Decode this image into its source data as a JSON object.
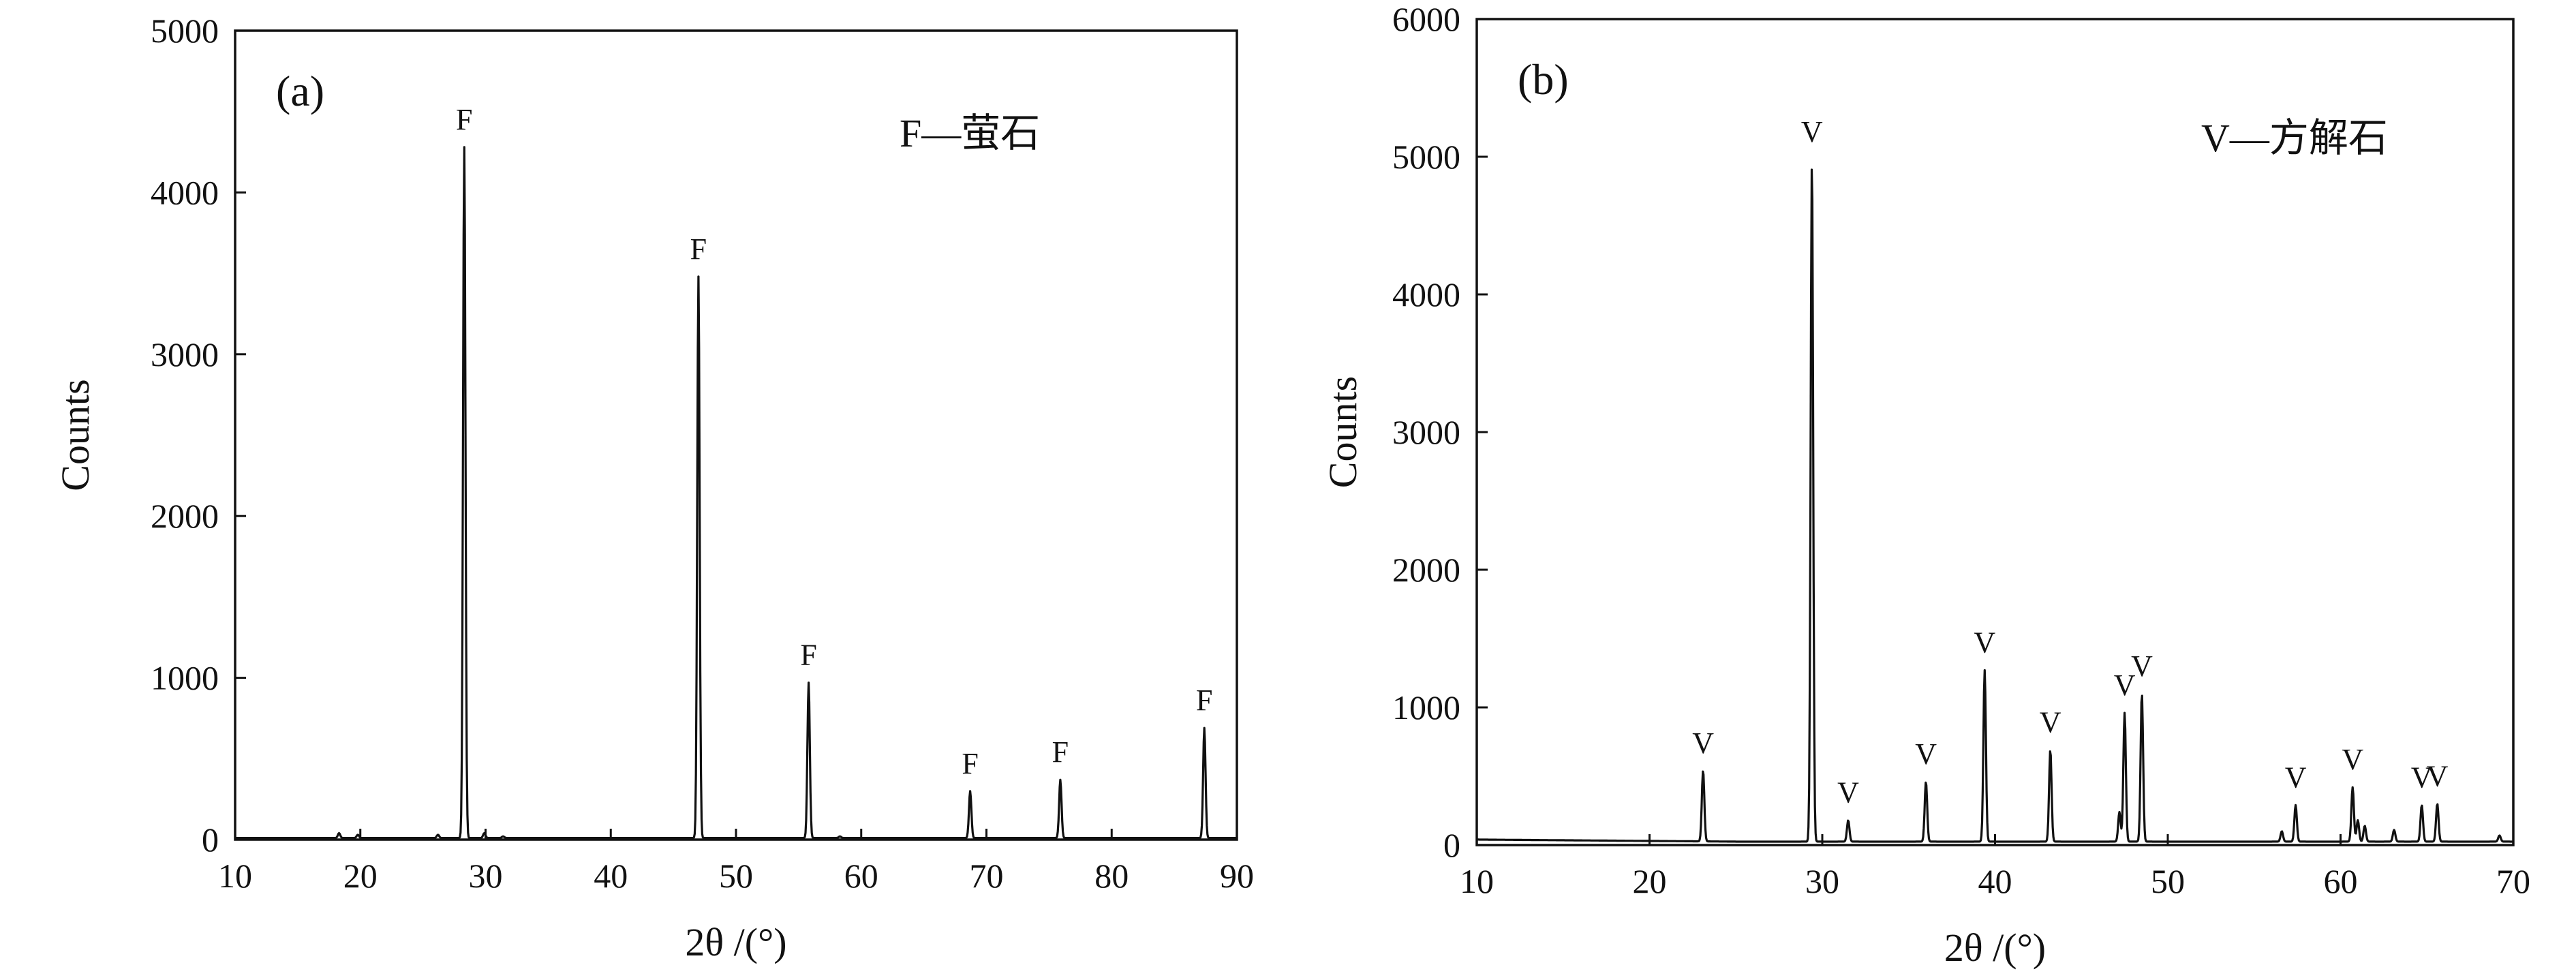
{
  "chart_data": [
    {
      "type": "line",
      "panel_label": "(a)",
      "legend_text": "F—萤石",
      "xlabel": "2θ /(°)",
      "ylabel": "Counts",
      "xlim": [
        10,
        90
      ],
      "ylim": [
        0,
        5000
      ],
      "x_ticks": [
        "10",
        "20",
        "30",
        "40",
        "50",
        "60",
        "70",
        "80",
        "90"
      ],
      "y_ticks": [
        "0",
        "1000",
        "2000",
        "3000",
        "4000",
        "5000"
      ],
      "x_tick_values": [
        10,
        20,
        30,
        40,
        50,
        60,
        70,
        80,
        90
      ],
      "y_tick_values": [
        0,
        1000,
        2000,
        3000,
        4000,
        5000
      ],
      "baseline": 10,
      "peaks": [
        {
          "x": 18.3,
          "y": 40
        },
        {
          "x": 19.8,
          "y": 30
        },
        {
          "x": 26.2,
          "y": 30
        },
        {
          "x": 28.3,
          "y": 4280,
          "label": "F"
        },
        {
          "x": 29.9,
          "y": 40
        },
        {
          "x": 31.4,
          "y": 20
        },
        {
          "x": 47.0,
          "y": 3480,
          "label": "F"
        },
        {
          "x": 55.8,
          "y": 970,
          "label": "F"
        },
        {
          "x": 58.3,
          "y": 20
        },
        {
          "x": 68.7,
          "y": 300,
          "label": "F"
        },
        {
          "x": 75.9,
          "y": 370,
          "label": "F"
        },
        {
          "x": 87.4,
          "y": 690,
          "label": "F"
        }
      ],
      "grid": false
    },
    {
      "type": "line",
      "panel_label": "(b)",
      "legend_text": "V—方解石",
      "xlabel": "2θ /(°)",
      "ylabel": "Counts",
      "xlim": [
        10,
        70
      ],
      "ylim": [
        0,
        6000
      ],
      "x_ticks": [
        "10",
        "20",
        "30",
        "40",
        "50",
        "60",
        "70"
      ],
      "y_ticks": [
        "0",
        "1000",
        "2000",
        "3000",
        "4000",
        "5000",
        "6000"
      ],
      "x_tick_values": [
        10,
        20,
        30,
        40,
        50,
        60,
        70
      ],
      "y_tick_values": [
        0,
        1000,
        2000,
        3000,
        4000,
        5000,
        6000
      ],
      "baseline": 25,
      "peaks": [
        {
          "x": 23.1,
          "y": 540,
          "label": "V"
        },
        {
          "x": 29.4,
          "y": 4980,
          "label": "V"
        },
        {
          "x": 31.5,
          "y": 180,
          "label": "V"
        },
        {
          "x": 36.0,
          "y": 460,
          "label": "V"
        },
        {
          "x": 39.4,
          "y": 1270,
          "label": "V"
        },
        {
          "x": 43.2,
          "y": 690,
          "label": "V"
        },
        {
          "x": 47.2,
          "y": 240
        },
        {
          "x": 47.5,
          "y": 960,
          "label": "V"
        },
        {
          "x": 48.5,
          "y": 1100,
          "label": "V"
        },
        {
          "x": 56.6,
          "y": 100
        },
        {
          "x": 57.4,
          "y": 290,
          "label": "V"
        },
        {
          "x": 60.7,
          "y": 420,
          "label": "V"
        },
        {
          "x": 61.0,
          "y": 180
        },
        {
          "x": 61.4,
          "y": 140
        },
        {
          "x": 63.1,
          "y": 110
        },
        {
          "x": 64.7,
          "y": 290,
          "label": "V"
        },
        {
          "x": 65.6,
          "y": 300,
          "label": "V"
        },
        {
          "x": 69.2,
          "y": 70
        }
      ],
      "grid": false
    }
  ]
}
